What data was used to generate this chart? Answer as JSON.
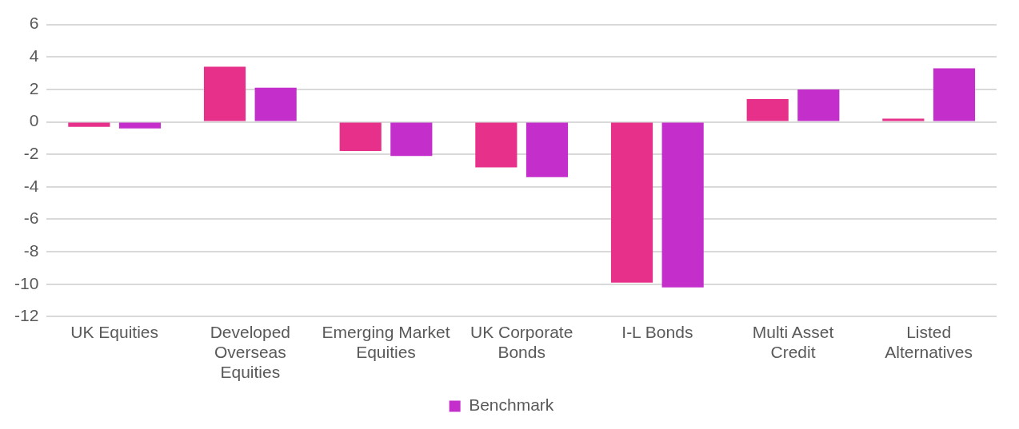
{
  "chart_data": {
    "type": "bar",
    "categories": [
      "UK Equities",
      "Developed Overseas Equities",
      "Emerging Market Equities",
      "UK Corporate Bonds",
      "I-L Bonds",
      "Multi Asset Credit",
      "Listed Alternatives"
    ],
    "series": [
      {
        "color": "#e6308a",
        "values": [
          -0.3,
          3.4,
          -1.8,
          -2.8,
          -9.9,
          1.4,
          0.2
        ]
      },
      {
        "name": "Benchmark",
        "color": "#c42fcb",
        "values": [
          -0.4,
          2.1,
          -2.1,
          -3.4,
          -10.2,
          2.0,
          3.3
        ]
      }
    ],
    "ylim": [
      -12,
      6
    ],
    "yticks": [
      -12,
      -10,
      -8,
      -6,
      -4,
      -2,
      0,
      2,
      4,
      6
    ],
    "grid": "y",
    "legend": "bottom"
  }
}
